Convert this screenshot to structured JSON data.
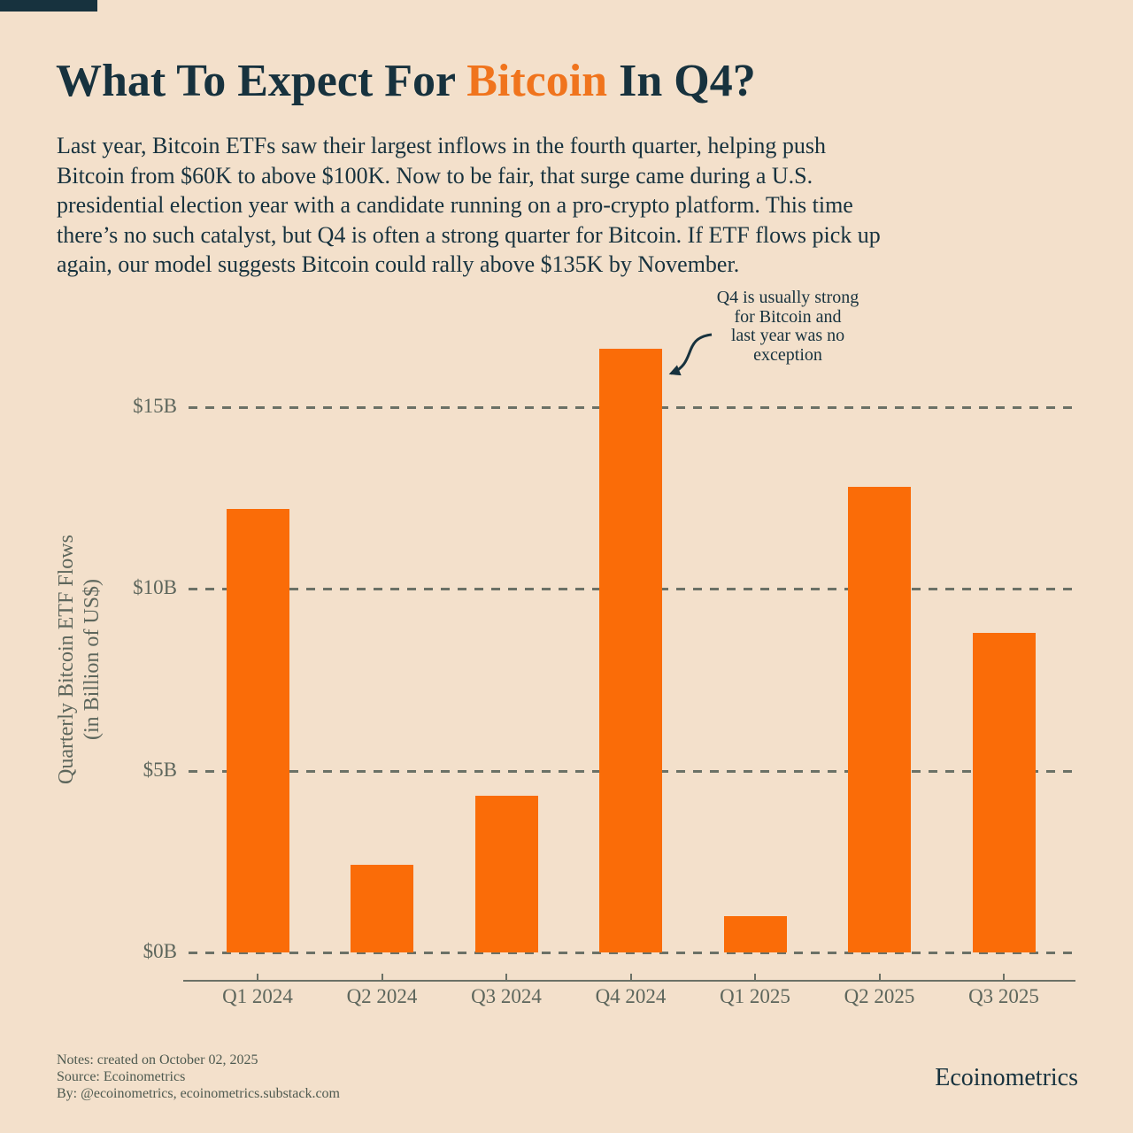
{
  "header": {
    "title_prefix": "What To Expect For ",
    "title_highlight": "Bitcoin",
    "title_suffix": " In Q4?",
    "intro": "Last year, Bitcoin ETFs saw their largest inflows in the fourth quarter, helping push Bitcoin from $60K to above $100K. Now to be fair, that surge came during a U.S. presidential election year with a candidate running on a pro-crypto platform. This time there’s no such catalyst, but Q4 is often a strong quarter for Bitcoin. If ETF flows pick up again, our model suggests Bitcoin could rally above $135K by November."
  },
  "chart_data": {
    "type": "bar",
    "title": "",
    "categories": [
      "Q1 2024",
      "Q2 2024",
      "Q3 2024",
      "Q4 2024",
      "Q1 2025",
      "Q2 2025",
      "Q3 2025"
    ],
    "values": [
      12.2,
      2.4,
      4.3,
      16.6,
      1.0,
      12.8,
      8.8
    ],
    "ylabel": "Quarterly Bitcoin ETF Flows\n(in Billion of US$)",
    "xlabel": "",
    "y_ticks": [
      0,
      5,
      10,
      15
    ],
    "y_tick_labels": [
      "$0B",
      "$5B",
      "$10B",
      "$15B"
    ],
    "ylim": [
      0,
      16.7
    ],
    "grid": "horizontal-dashed",
    "legend": "none",
    "bar_color": "#fa6c08",
    "annotation": {
      "text": "Q4 is usually strong\nfor Bitcoin and\nlast year was no\nexception",
      "target": "Q4 2024"
    }
  },
  "footer": {
    "notes": "Notes: created on October 02, 2025\nSource: Ecoinometrics\nBy: @ecoinometrics, ecoinometrics.substack.com",
    "brand": "Ecoinometrics"
  },
  "colors": {
    "background": "#f3e0cb",
    "bar_orange": "#fa6c08",
    "title_orange": "#f0741d",
    "dark_text": "#17323e",
    "axis_gray": "#5d665c"
  }
}
